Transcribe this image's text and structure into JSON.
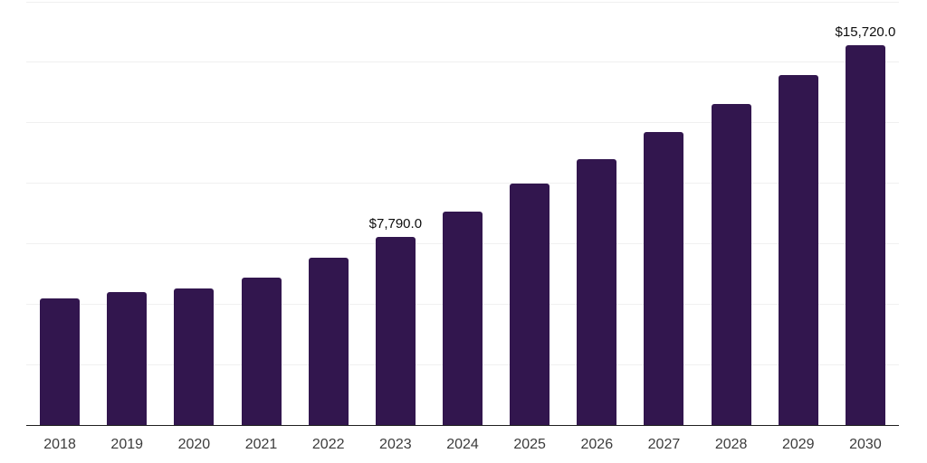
{
  "chart_data": {
    "type": "bar",
    "title": "",
    "xlabel": "",
    "ylabel": "",
    "categories": [
      "2018",
      "2019",
      "2020",
      "2021",
      "2022",
      "2023",
      "2024",
      "2025",
      "2026",
      "2027",
      "2028",
      "2029",
      "2030"
    ],
    "values": [
      5250,
      5510,
      5660,
      6110,
      6920,
      7790,
      8820,
      9970,
      11000,
      12120,
      13270,
      14480,
      15720
    ],
    "annotations": [
      {
        "category": "2023",
        "text": "$7,790.0"
      },
      {
        "category": "2030",
        "text": "$15,720.0"
      }
    ],
    "ylim": [
      0,
      17500
    ],
    "gridline_step": 2500,
    "grid": true,
    "legend": false,
    "y_axis_tick_labels_visible": false,
    "bar_color": "#32164e",
    "gridline_color": "#f0f0f0",
    "axis_line_color": "#1f1f1f",
    "tick_label_color": "#3c3c3c",
    "annotation_color": "#0d0d0d",
    "background": "#ffffff"
  }
}
